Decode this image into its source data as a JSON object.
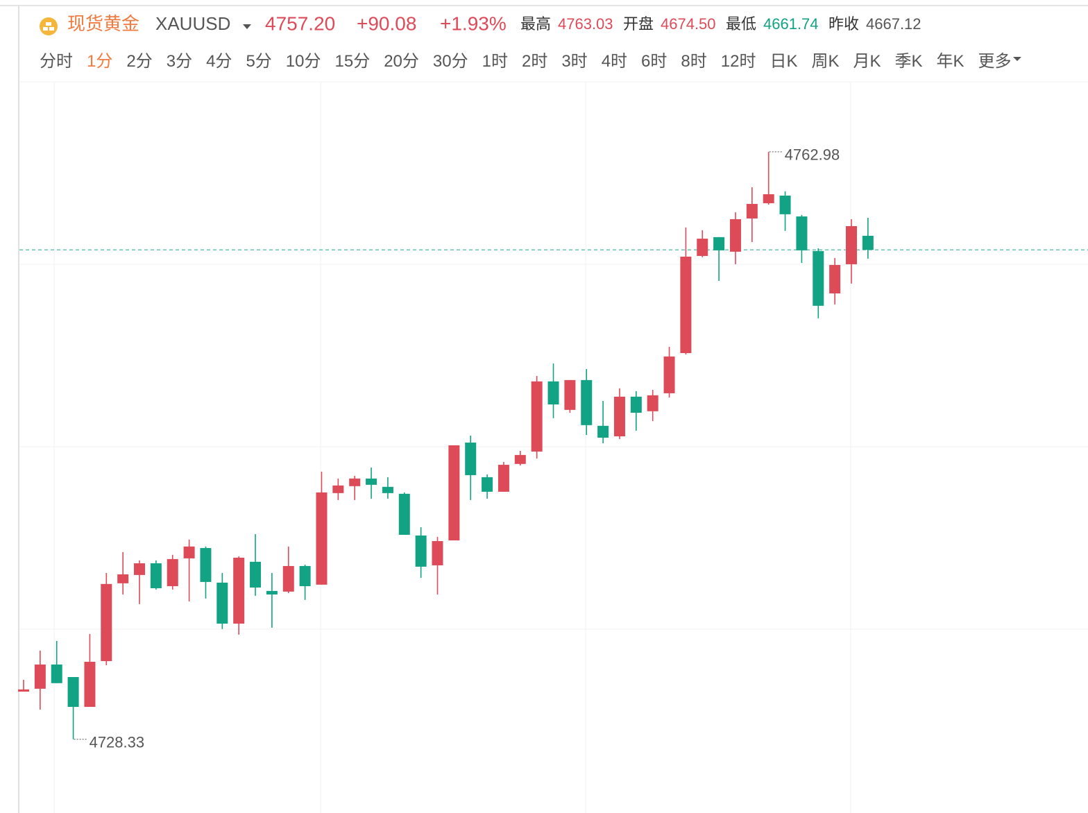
{
  "header": {
    "name": "现货黄金",
    "symbol": "XAUUSD",
    "price": "4757.20",
    "change": "+90.08",
    "change_pct": "+1.93%",
    "stats": [
      {
        "label": "最高",
        "value": "4763.03",
        "color": "#dd4b58"
      },
      {
        "label": "开盘",
        "value": "4674.50",
        "color": "#dd4b58"
      },
      {
        "label": "最低",
        "value": "4661.74",
        "color": "#12a385"
      },
      {
        "label": "昨收",
        "value": "4667.12",
        "color": "#555555"
      }
    ]
  },
  "tabs": {
    "items": [
      "分时",
      "1分",
      "2分",
      "3分",
      "4分",
      "5分",
      "10分",
      "15分",
      "20分",
      "30分",
      "1时",
      "2时",
      "3时",
      "4时",
      "6时",
      "8时",
      "12时",
      "日K",
      "周K",
      "月K",
      "季K",
      "年K",
      "更多"
    ],
    "active": 1
  },
  "chart_data": {
    "type": "candlestick",
    "up_color": "#dd4b58",
    "down_color": "#12a385",
    "ylim": [
      4723.98,
      4767.11
    ],
    "open": [
      4731.14,
      4731.31,
      4732.74,
      4732.0,
      4730.24,
      4732.94,
      4737.53,
      4738.02,
      4738.71,
      4737.36,
      4739.0,
      4739.61,
      4737.57,
      4735.15,
      4738.8,
      4737.08,
      4737.04,
      4738.55,
      4737.45,
      4742.85,
      4743.26,
      4743.71,
      4743.22,
      4742.81,
      4740.35,
      4738.59,
      4740.06,
      4745.83,
      4743.79,
      4742.93,
      4744.57,
      4745.3,
      4749.44,
      4747.76,
      4749.52,
      4746.82,
      4746.2,
      4748.54,
      4747.68,
      4748.74,
      4751.11,
      4756.84,
      4757.95,
      4757.09,
      4759.05,
      4759.95,
      4760.4,
      4759.17,
      4757.13,
      4754.63,
      4756.35,
      4758.03
    ],
    "high": [
      4731.84,
      4733.56,
      4734.13,
      4732.0,
      4734.54,
      4738.14,
      4739.37,
      4738.88,
      4738.88,
      4739.21,
      4740.11,
      4739.7,
      4738.14,
      4739.12,
      4740.43,
      4738.14,
      4739.7,
      4738.63,
      4744.12,
      4743.71,
      4743.87,
      4744.36,
      4743.79,
      4742.89,
      4740.84,
      4740.27,
      4745.67,
      4746.24,
      4743.95,
      4744.69,
      4745.34,
      4749.76,
      4750.5,
      4749.52,
      4750.17,
      4748.29,
      4749.03,
      4748.86,
      4748.94,
      4751.48,
      4758.52,
      4758.36,
      4757.95,
      4759.42,
      4760.89,
      4762.98,
      4760.65,
      4759.26,
      4757.29,
      4756.72,
      4759.01,
      4759.09
    ],
    "low": [
      4731.14,
      4730.08,
      4731.64,
      4728.33,
      4730.24,
      4732.7,
      4736.87,
      4736.3,
      4737.16,
      4737.16,
      4736.46,
      4736.63,
      4734.83,
      4734.5,
      4736.79,
      4734.91,
      4736.95,
      4736.55,
      4737.45,
      4742.44,
      4742.44,
      4742.52,
      4742.52,
      4740.39,
      4737.85,
      4736.87,
      4740.06,
      4742.44,
      4742.52,
      4742.93,
      4744.48,
      4744.89,
      4747.27,
      4747.59,
      4746.28,
      4745.79,
      4746.04,
      4746.53,
      4747.1,
      4748.49,
      4751.03,
      4756.76,
      4755.37,
      4756.35,
      4757.66,
      4759.87,
      4758.32,
      4756.43,
      4753.16,
      4753.98,
      4755.21,
      4756.68
    ],
    "close": [
      4731.27,
      4732.74,
      4731.64,
      4730.24,
      4732.9,
      4737.49,
      4738.06,
      4738.71,
      4737.24,
      4738.96,
      4739.7,
      4737.61,
      4735.15,
      4739.04,
      4737.28,
      4736.87,
      4738.55,
      4737.36,
      4742.89,
      4743.3,
      4743.71,
      4743.34,
      4742.85,
      4740.39,
      4738.51,
      4740.02,
      4745.67,
      4743.91,
      4742.93,
      4744.52,
      4745.1,
      4749.44,
      4748.08,
      4749.52,
      4746.86,
      4746.12,
      4748.54,
      4747.59,
      4748.62,
      4750.91,
      4756.8,
      4757.86,
      4757.17,
      4759.01,
      4759.91,
      4760.48,
      4759.3,
      4757.17,
      4753.9,
      4756.31,
      4758.6,
      4757.2
    ]
  }
}
